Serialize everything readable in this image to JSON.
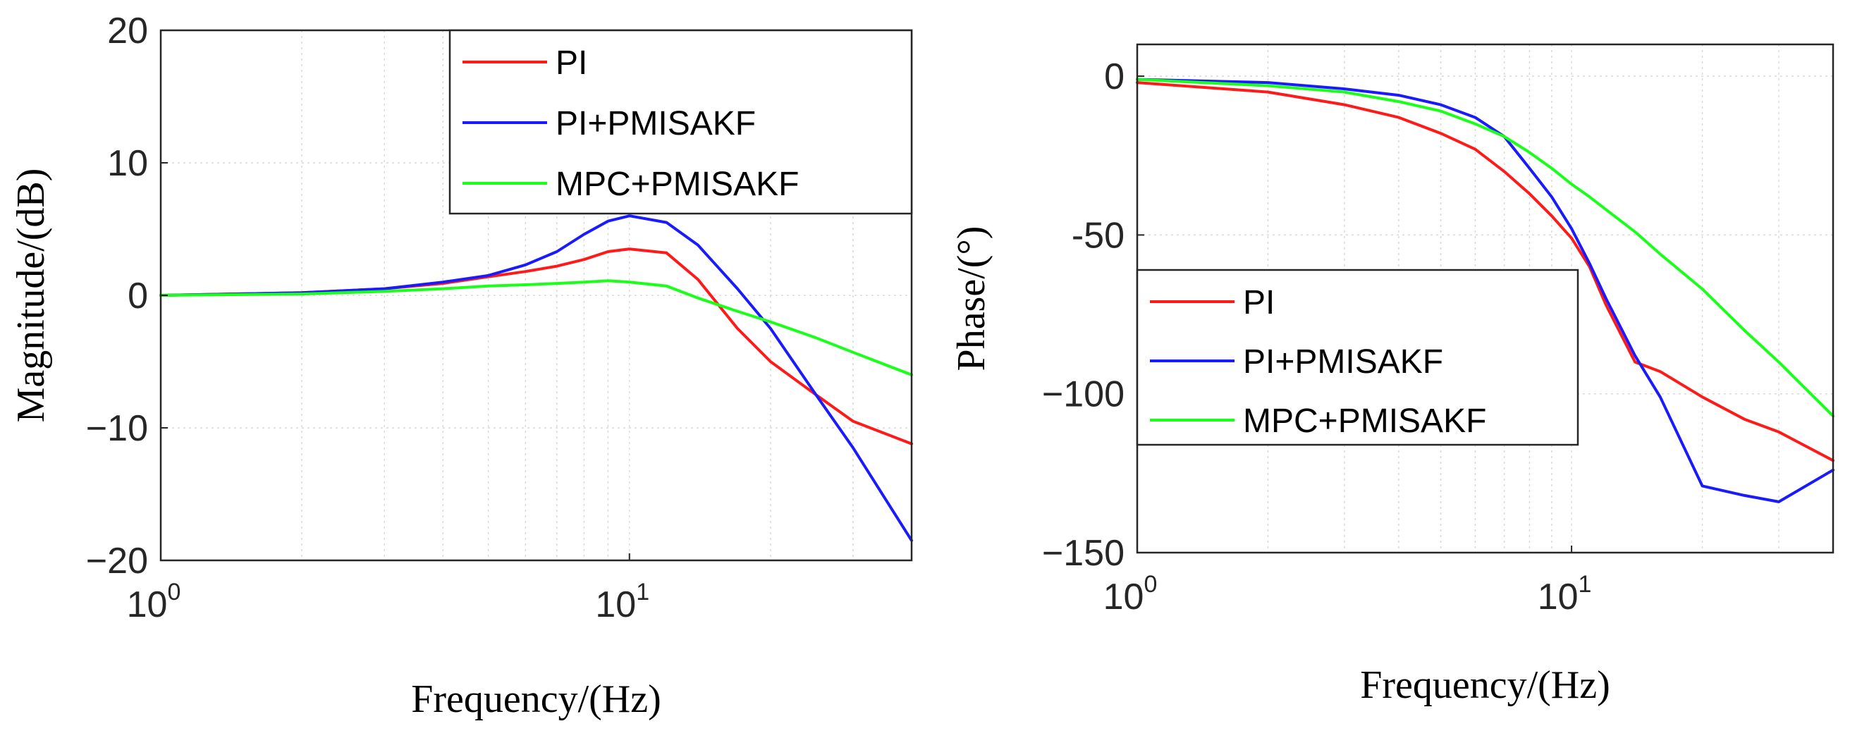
{
  "colors": {
    "PI": "#ff1a1a",
    "PI+PMISAKF": "#1a1aff",
    "MPC+PMISAKF": "#1aff1a"
  },
  "chart_data": [
    {
      "type": "line",
      "name": "magnitude",
      "xscale": "log",
      "xlabel": "Frequency/(Hz)",
      "ylabel": "Magnitude/(dB)",
      "xlim": [
        1,
        40
      ],
      "ylim": [
        -20,
        20
      ],
      "legend_position": "top-right",
      "grid": true,
      "xticks": [
        {
          "value": 1,
          "base": "10",
          "exp": "0"
        },
        {
          "value": 10,
          "base": "10",
          "exp": "1"
        }
      ],
      "yticks": [
        {
          "value": 20,
          "label": "20"
        },
        {
          "value": 10,
          "label": "10"
        },
        {
          "value": 0,
          "label": "0"
        },
        {
          "value": -10,
          "label": "−10"
        },
        {
          "value": -20,
          "label": "−20"
        }
      ],
      "series": [
        {
          "name": "PI",
          "x": [
            1,
            2,
            3,
            4,
            5,
            6,
            7,
            8,
            9,
            10,
            12,
            14,
            17,
            20,
            25,
            30,
            40
          ],
          "values": [
            0,
            0.2,
            0.5,
            0.9,
            1.4,
            1.8,
            2.2,
            2.7,
            3.3,
            3.5,
            3.2,
            1.2,
            -2.5,
            -5,
            -7.5,
            -9.5,
            -11.2
          ]
        },
        {
          "name": "PI+PMISAKF",
          "x": [
            1,
            2,
            3,
            4,
            5,
            6,
            7,
            8,
            9,
            10,
            12,
            14,
            17,
            20,
            25,
            30,
            40
          ],
          "values": [
            0,
            0.2,
            0.5,
            1.0,
            1.5,
            2.3,
            3.3,
            4.6,
            5.6,
            6.0,
            5.5,
            3.8,
            0.5,
            -2.5,
            -7.5,
            -11.5,
            -18.5
          ]
        },
        {
          "name": "MPC+PMISAKF",
          "x": [
            1,
            2,
            3,
            4,
            5,
            6,
            7,
            8,
            9,
            10,
            12,
            14,
            17,
            20,
            25,
            30,
            40
          ],
          "values": [
            0,
            0.1,
            0.3,
            0.5,
            0.7,
            0.8,
            0.9,
            1.0,
            1.1,
            1.0,
            0.7,
            -0.2,
            -1.2,
            -2.0,
            -3.2,
            -4.3,
            -6.0
          ]
        }
      ]
    },
    {
      "type": "line",
      "name": "phase",
      "xscale": "log",
      "xlabel": "Frequency/(Hz)",
      "ylabel": "Phase/(°)",
      "xlim": [
        1,
        40
      ],
      "ylim": [
        -150,
        10
      ],
      "legend_position": "middle-left",
      "grid": true,
      "xticks": [
        {
          "value": 1,
          "base": "10",
          "exp": "0"
        },
        {
          "value": 10,
          "base": "10",
          "exp": "1"
        }
      ],
      "yticks": [
        {
          "value": 0,
          "label": "0"
        },
        {
          "value": -50,
          "label": "-50"
        },
        {
          "value": -100,
          "label": "−100"
        },
        {
          "value": -150,
          "label": "−150"
        }
      ],
      "series": [
        {
          "name": "PI",
          "x": [
            1,
            2,
            3,
            4,
            5,
            6,
            7,
            8,
            9,
            10,
            11,
            12,
            14,
            16,
            20,
            25,
            30,
            40
          ],
          "values": [
            -2,
            -5,
            -9,
            -13,
            -18,
            -23,
            -30,
            -37,
            -44,
            -51,
            -60,
            -72,
            -90,
            -93,
            -101,
            -108,
            -112,
            -121
          ]
        },
        {
          "name": "PI+PMISAKF",
          "x": [
            1,
            2,
            3,
            4,
            5,
            6,
            7,
            8,
            9,
            10,
            11,
            12,
            14,
            16,
            20,
            25,
            30,
            40
          ],
          "values": [
            -1,
            -2,
            -4,
            -6,
            -9,
            -13,
            -19,
            -29,
            -38,
            -48,
            -59,
            -70,
            -88,
            -101,
            -129,
            -132,
            -134,
            -124
          ]
        },
        {
          "name": "MPC+PMISAKF",
          "x": [
            1,
            2,
            3,
            4,
            5,
            6,
            7,
            8,
            9,
            10,
            11,
            12,
            14,
            16,
            20,
            25,
            30,
            40
          ],
          "values": [
            -1,
            -3,
            -5,
            -8,
            -11,
            -15,
            -19,
            -24,
            -29,
            -34,
            -38,
            -42,
            -49,
            -56,
            -67,
            -80,
            -90,
            -107
          ]
        }
      ]
    }
  ]
}
